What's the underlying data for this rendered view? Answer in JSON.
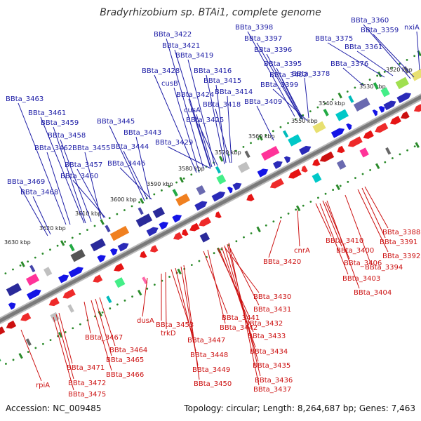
{
  "title": "Bradyrhizobium sp. BTAi1, complete genome",
  "footer": {
    "accession": "Accession: NC_009485",
    "topology": "Topology: circular; Length: 8,264,687 bp; Genes: 7,463"
  },
  "colors": {
    "forward": "#1414e6",
    "reverse": "#e61414",
    "backbone": "#7a7a7a",
    "ticks": "#2a8a2a"
  },
  "kbp_ticks": [
    {
      "label": "3520 kbp"
    },
    {
      "label": "3530 kbp"
    },
    {
      "label": "3540 kbp"
    },
    {
      "label": "3550 kbp"
    },
    {
      "label": "3560 kbp"
    },
    {
      "label": "3570 kbp"
    },
    {
      "label": "3580 kbp"
    },
    {
      "label": "3590 kbp"
    },
    {
      "label": "3600 kbp"
    },
    {
      "label": "3610 kbp"
    },
    {
      "label": "3620 kbp"
    },
    {
      "label": "3630 kbp"
    }
  ],
  "labels_top": [
    "BBta_3360",
    "BBta_3359",
    "nxiA",
    "BBta_3375",
    "BBta_3361",
    "BBta_3376",
    "BBta_3398",
    "BBta_3397",
    "BBta_3396",
    "BBta_3395",
    "BBta_3402",
    "BBta_3378",
    "BBta_3399",
    "BBta_3422",
    "BBta_3421",
    "BBta_3419",
    "BBta_3416",
    "BBta_3415",
    "BBta_3428",
    "cusB",
    "BBta_3414",
    "BBta_3424",
    "BBta_3418",
    "BBta_3409",
    "cusA",
    "BBta_3425",
    "BBta_3463",
    "BBta_3461",
    "BBta_3459",
    "BBta_3445",
    "BBta_3443",
    "BBta_3458",
    "BBta_3444",
    "BBta_3429",
    "BBta_3462",
    "BBta_3455",
    "BBta_3457",
    "BBta_3446",
    "BBta_3460",
    "BBta_3469",
    "BBta_3468"
  ],
  "labels_bottom": [
    "BBta_3388",
    "BBta_3391",
    "BBta_3410",
    "BBta_3392",
    "BBta_3400",
    "BBta_3406",
    "BBta_3394",
    "BBta_3403",
    "BBta_3404",
    "cnrA",
    "BBta_3420",
    "BBta_3430",
    "BBta_3431",
    "dusA",
    "BBta_3441",
    "BBta_3453",
    "BBta_3442",
    "BBta_3432",
    "trkD",
    "BBta_3433",
    "BBta_3467",
    "BBta_3447",
    "BBta_3464",
    "BBta_3434",
    "BBta_3448",
    "BBta_3465",
    "BBta_3435",
    "BBta_3471",
    "BBta_3449",
    "BBta_3466",
    "BBta_3436",
    "BBta_3450",
    "BBta_3437",
    "BBta_3472",
    "rpiA",
    "BBta_3475"
  ]
}
